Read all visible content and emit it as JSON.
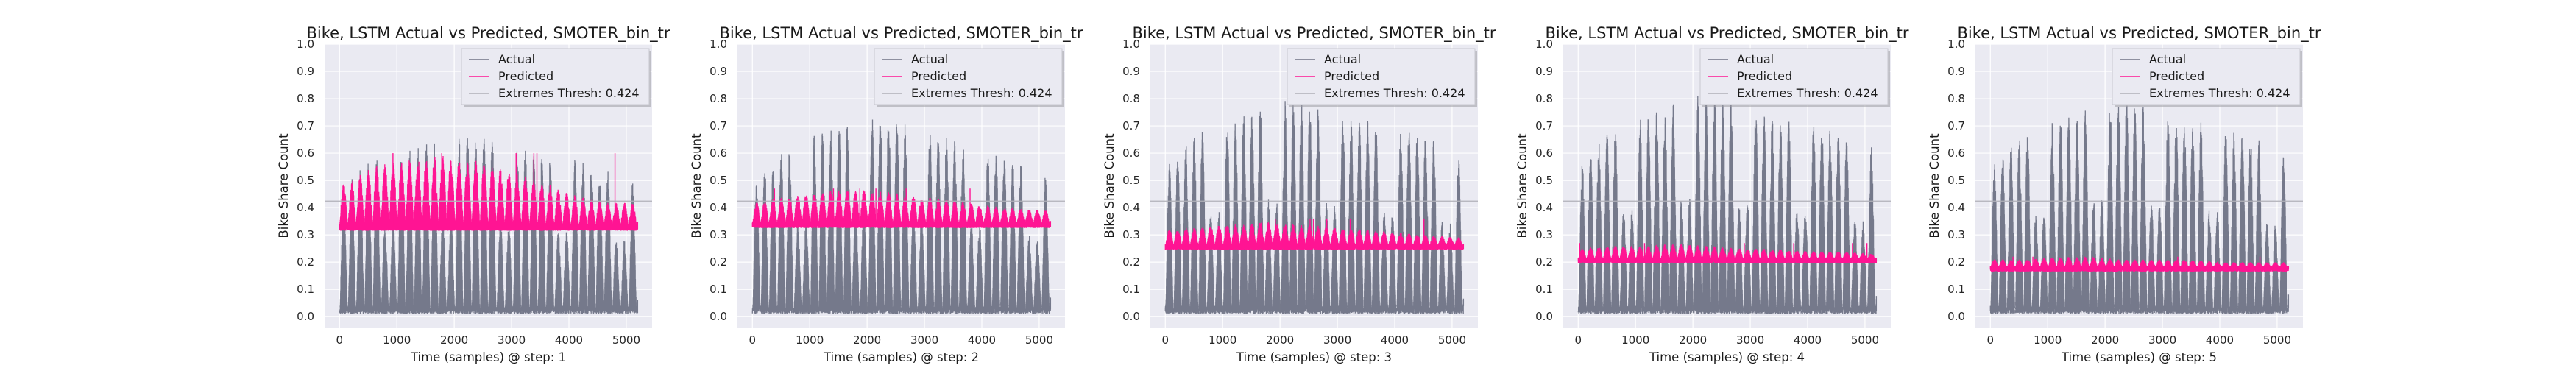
{
  "figure": {
    "background": "#ffffff"
  },
  "style": {
    "axes_face": "#eaeaf2",
    "grid": "#ffffff",
    "actual_color": "#6f7385",
    "predicted_color": "#ff1493",
    "thresh_color": "#b0b0b8",
    "legend_face": "#eaeaf2"
  },
  "chart_data": [
    {
      "type": "line",
      "title": "Bike, LSTM Actual vs Predicted, SMOTER_bin_tr",
      "xlabel": "Time (samples) @ step: 1",
      "ylabel": "Bike Share Count",
      "xlim": [
        -260,
        5450
      ],
      "ylim": [
        -0.04,
        1.0
      ],
      "xticks": [
        0,
        1000,
        2000,
        3000,
        4000,
        5000
      ],
      "yticks": [
        0.0,
        0.1,
        0.2,
        0.3,
        0.4,
        0.5,
        0.6,
        0.7,
        0.8,
        0.9,
        1.0
      ],
      "grid": true,
      "legend_position": "top-right",
      "series": [
        {
          "name": "Actual",
          "n_points": 5200,
          "min": 0.0,
          "max": 0.68,
          "daily_peak_envelope": [
            0.45,
            0.6,
            0.62,
            0.66,
            0.68,
            0.64,
            0.6,
            0.58,
            0.54,
            0.5
          ]
        },
        {
          "name": "Predicted",
          "n_points": 5200,
          "baseline": 0.33,
          "max": 0.6,
          "envelope": [
            0.48,
            0.55,
            0.58,
            0.6,
            0.58,
            0.54,
            0.5,
            0.45,
            0.42,
            0.42
          ]
        }
      ],
      "threshold": {
        "name": "Extremes Thresh: 0.424",
        "value": 0.424
      }
    },
    {
      "type": "line",
      "title": "Bike, LSTM Actual vs Predicted, SMOTER_bin_tr",
      "xlabel": "Time (samples) @ step: 2",
      "ylabel": "Bike Share Count",
      "xlim": [
        -260,
        5450
      ],
      "ylim": [
        -0.04,
        1.0
      ],
      "xticks": [
        0,
        1000,
        2000,
        3000,
        4000,
        5000
      ],
      "yticks": [
        0.0,
        0.1,
        0.2,
        0.3,
        0.4,
        0.5,
        0.6,
        0.7,
        0.8,
        0.9,
        1.0
      ],
      "grid": true,
      "legend_position": "top-right",
      "series": [
        {
          "name": "Actual",
          "n_points": 5200,
          "min": 0.0,
          "max": 0.75,
          "daily_peak_envelope": [
            0.5,
            0.62,
            0.68,
            0.72,
            0.75,
            0.7,
            0.65,
            0.62,
            0.58,
            0.52
          ]
        },
        {
          "name": "Predicted",
          "n_points": 5200,
          "baseline": 0.34,
          "max": 0.47,
          "envelope": [
            0.42,
            0.44,
            0.46,
            0.47,
            0.46,
            0.44,
            0.43,
            0.41,
            0.4,
            0.39
          ]
        }
      ],
      "threshold": {
        "name": "Extremes Thresh: 0.424",
        "value": 0.424
      }
    },
    {
      "type": "line",
      "title": "Bike, LSTM Actual vs Predicted, SMOTER_bin_tr",
      "xlabel": "Time (samples) @ step: 3",
      "ylabel": "Bike Share Count",
      "xlim": [
        -260,
        5450
      ],
      "ylim": [
        -0.04,
        1.0
      ],
      "xticks": [
        0,
        1000,
        2000,
        3000,
        4000,
        5000
      ],
      "yticks": [
        0.0,
        0.1,
        0.2,
        0.3,
        0.4,
        0.5,
        0.6,
        0.7,
        0.8,
        0.9,
        1.0
      ],
      "grid": true,
      "legend_position": "top-right",
      "series": [
        {
          "name": "Actual",
          "n_points": 5200,
          "min": 0.0,
          "max": 0.8,
          "daily_peak_envelope": [
            0.55,
            0.68,
            0.72,
            0.78,
            0.8,
            0.76,
            0.72,
            0.7,
            0.66,
            0.6
          ]
        },
        {
          "name": "Predicted",
          "n_points": 5200,
          "baseline": 0.26,
          "max": 0.36,
          "envelope": [
            0.32,
            0.33,
            0.34,
            0.35,
            0.34,
            0.33,
            0.32,
            0.31,
            0.3,
            0.29
          ]
        }
      ],
      "threshold": {
        "name": "Extremes Thresh: 0.424",
        "value": 0.424
      }
    },
    {
      "type": "line",
      "title": "Bike, LSTM Actual vs Predicted, SMOTER_bin_tr",
      "xlabel": "Time (samples) @ step: 4",
      "ylabel": "Bike Share Count",
      "xlim": [
        -260,
        5450
      ],
      "ylim": [
        -0.04,
        1.0
      ],
      "xticks": [
        0,
        1000,
        2000,
        3000,
        4000,
        5000
      ],
      "yticks": [
        0.0,
        0.1,
        0.2,
        0.3,
        0.4,
        0.5,
        0.6,
        0.7,
        0.8,
        0.9,
        1.0
      ],
      "grid": true,
      "legend_position": "top-right",
      "series": [
        {
          "name": "Actual",
          "n_points": 5200,
          "min": 0.0,
          "max": 0.82,
          "daily_peak_envelope": [
            0.55,
            0.7,
            0.74,
            0.8,
            0.82,
            0.78,
            0.74,
            0.72,
            0.68,
            0.62
          ]
        },
        {
          "name": "Predicted",
          "n_points": 5200,
          "baseline": 0.21,
          "max": 0.27,
          "envelope": [
            0.25,
            0.26,
            0.26,
            0.27,
            0.26,
            0.25,
            0.25,
            0.24,
            0.24,
            0.23
          ]
        }
      ],
      "threshold": {
        "name": "Extremes Thresh: 0.424",
        "value": 0.424
      }
    },
    {
      "type": "line",
      "title": "Bike, LSTM Actual vs Predicted, SMOTER_bin_tr",
      "xlabel": "Time (samples) @ step: 5",
      "ylabel": "Bike Share Count",
      "xlim": [
        -260,
        5450
      ],
      "ylim": [
        -0.04,
        1.0
      ],
      "xticks": [
        0,
        1000,
        2000,
        3000,
        4000,
        5000
      ],
      "yticks": [
        0.0,
        0.1,
        0.2,
        0.3,
        0.4,
        0.5,
        0.6,
        0.7,
        0.8,
        0.9,
        1.0
      ],
      "grid": true,
      "legend_position": "top-right",
      "series": [
        {
          "name": "Actual",
          "n_points": 5200,
          "min": 0.0,
          "max": 0.8,
          "daily_peak_envelope": [
            0.55,
            0.68,
            0.72,
            0.78,
            0.8,
            0.76,
            0.72,
            0.7,
            0.66,
            0.6
          ]
        },
        {
          "name": "Predicted",
          "n_points": 5200,
          "baseline": 0.18,
          "max": 0.22,
          "envelope": [
            0.21,
            0.21,
            0.22,
            0.22,
            0.21,
            0.21,
            0.21,
            0.2,
            0.2,
            0.2
          ]
        }
      ],
      "threshold": {
        "name": "Extremes Thresh: 0.424",
        "value": 0.424
      }
    }
  ]
}
